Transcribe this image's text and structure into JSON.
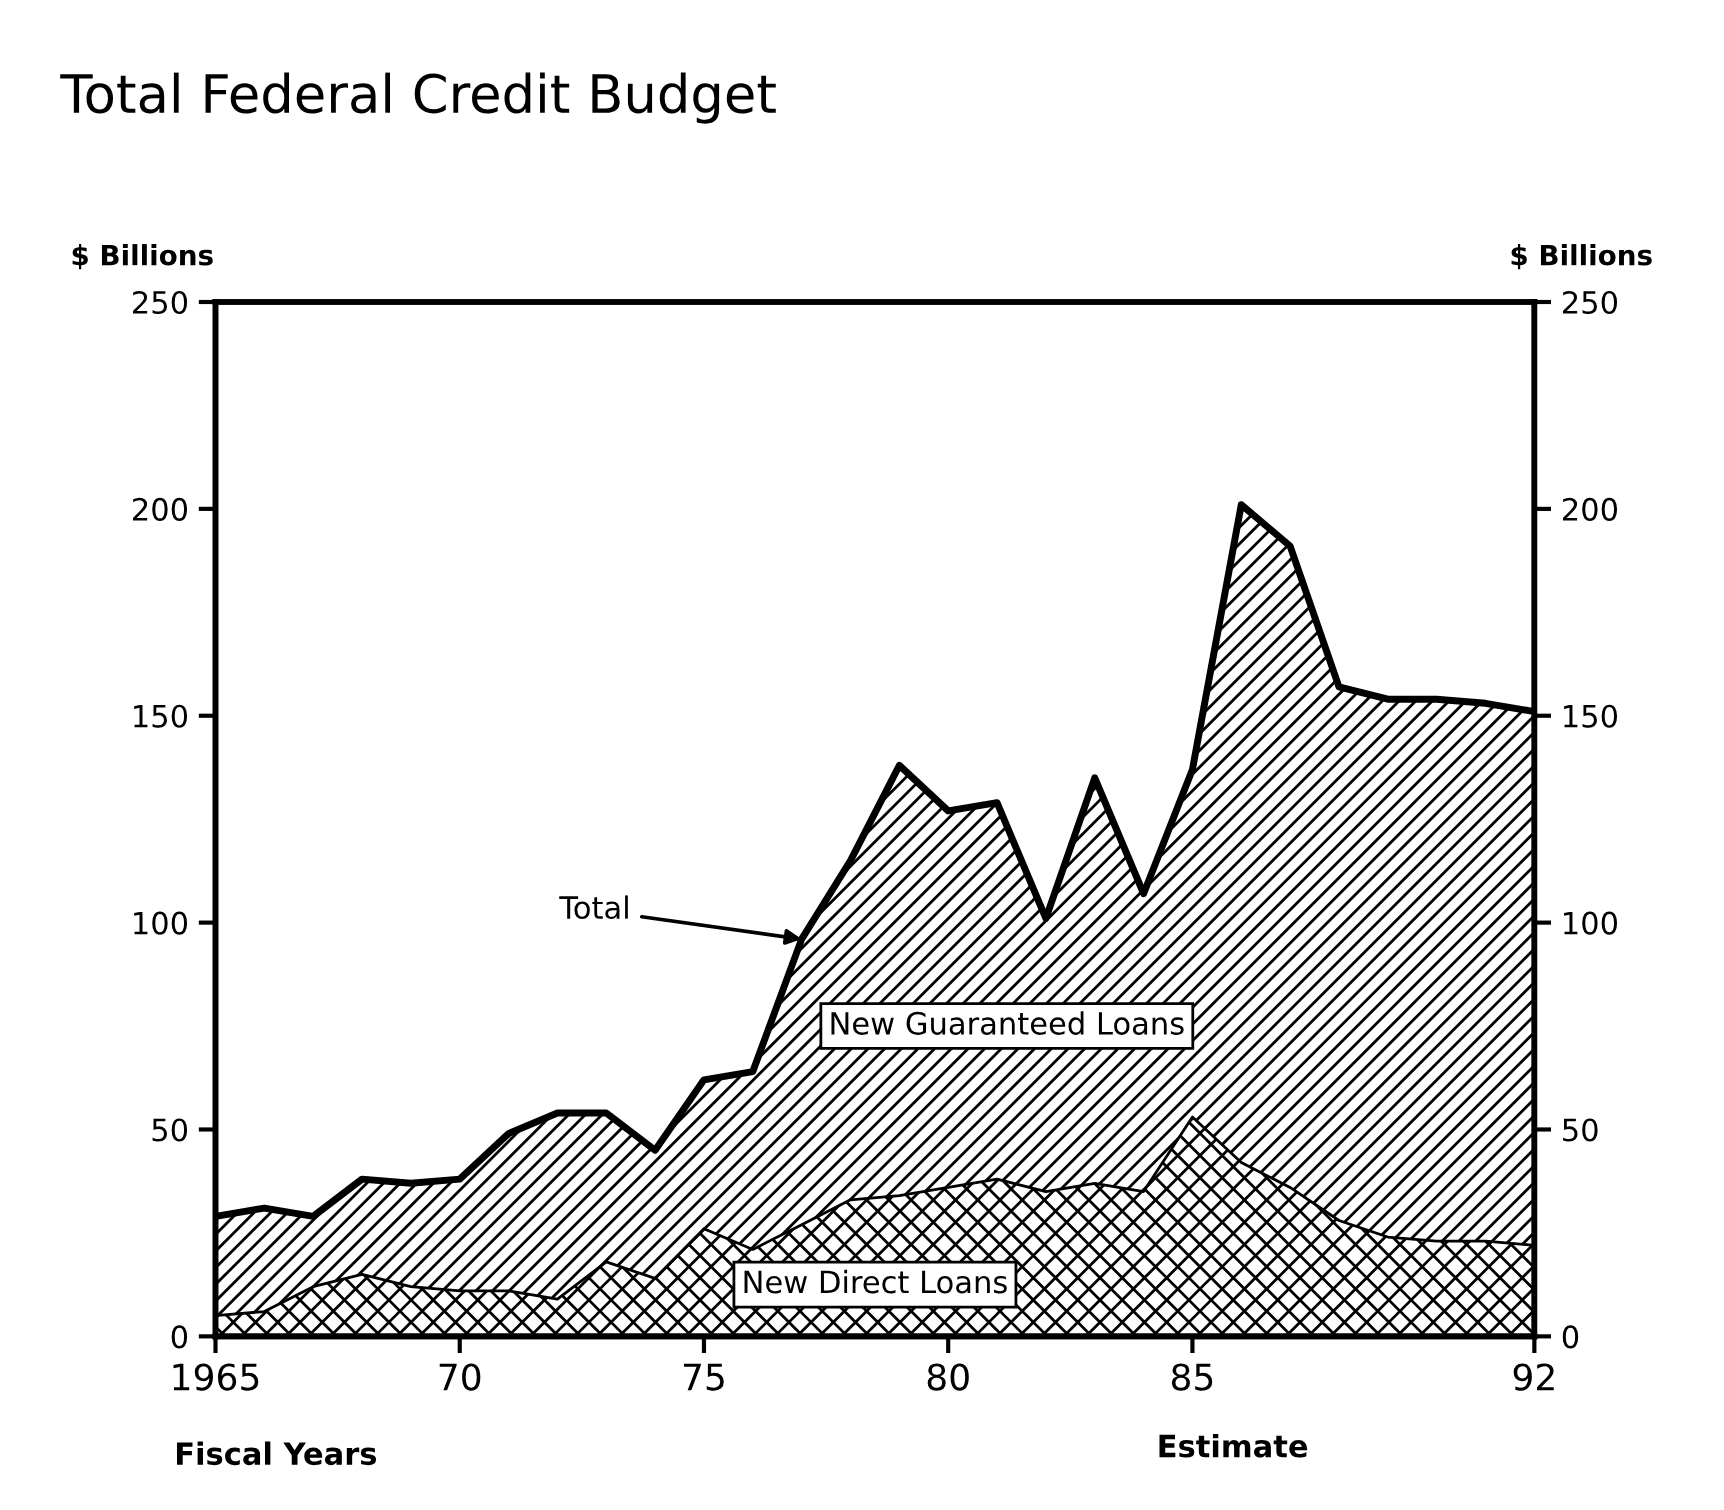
{
  "chart_data": {
    "type": "area",
    "stacked": true,
    "title": "Total Federal Credit Budget",
    "xlabel": "Fiscal Years",
    "ylabel": "$ Billions",
    "y2label": "$ Billions",
    "x": [
      1965,
      1966,
      1967,
      1968,
      1969,
      1970,
      1971,
      1972,
      1973,
      1974,
      1975,
      1976,
      1977,
      1978,
      1979,
      1980,
      1981,
      1982,
      1983,
      1984,
      1985,
      1986,
      1987,
      1988,
      1989,
      1990,
      1991,
      1992
    ],
    "series": [
      {
        "name": "New Direct Loans",
        "color": "#ffffff",
        "values": [
          5,
          6,
          12,
          15,
          12,
          11,
          11,
          9,
          18,
          14,
          26,
          21,
          27,
          33,
          34,
          36,
          38,
          35,
          37,
          35,
          53,
          42,
          36,
          28,
          24,
          23,
          23,
          22
        ]
      },
      {
        "name": "New Guaranteed Loans",
        "color": "#ffffff",
        "values": [
          24,
          25,
          17,
          23,
          25,
          27,
          38,
          45,
          36,
          31,
          36,
          43,
          69,
          82,
          104,
          91,
          91,
          66,
          98,
          72,
          84,
          159,
          155,
          129,
          130,
          131,
          130,
          129
        ]
      }
    ],
    "annotations": [
      {
        "text": "Total",
        "x": 1977,
        "y": 96
      },
      "Estimate"
    ],
    "xlim": [
      1965,
      1992
    ],
    "xticks": [
      {
        "value": 1965,
        "label": "1965"
      },
      {
        "value": 1970,
        "label": "70"
      },
      {
        "value": 1975,
        "label": "75"
      },
      {
        "value": 1980,
        "label": "80"
      },
      {
        "value": 1985,
        "label": "85"
      },
      {
        "value": 1992,
        "label": "92"
      }
    ],
    "ylim": [
      0,
      250
    ],
    "yticks": [
      0,
      50,
      100,
      150,
      200,
      250
    ],
    "y2lim": [
      0,
      250
    ],
    "y2ticks": [
      0,
      50,
      100,
      150,
      200,
      250
    ],
    "grid": false,
    "legend": false
  }
}
